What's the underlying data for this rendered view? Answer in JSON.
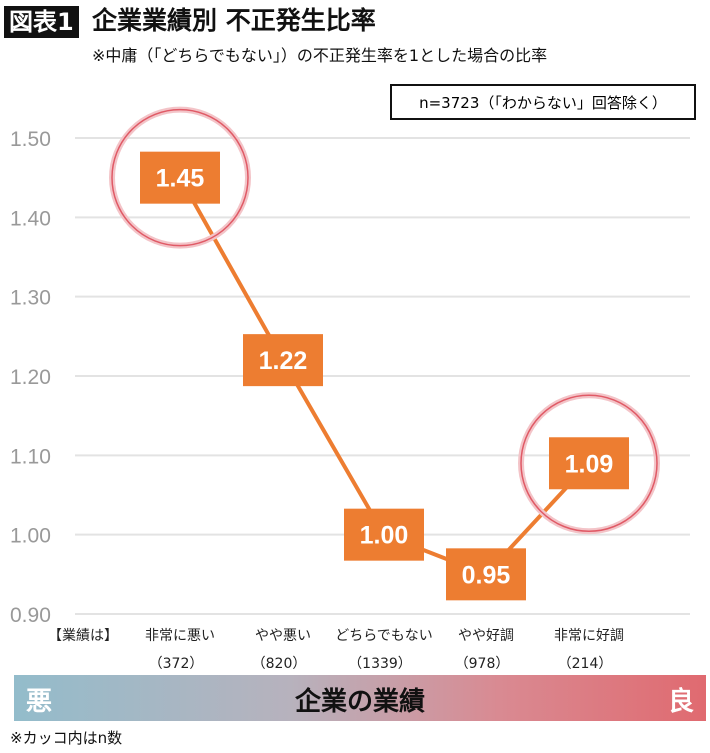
{
  "header": {
    "badge": "図表1",
    "title": "企業業績別 不正発生比率",
    "subtitle": "※中庸（「どちらでもない」）の不正発生率を1とした場合の比率",
    "n_note": "n=3723（「わからない」回答除く）"
  },
  "chart_data": {
    "type": "line",
    "title": "企業業績別 不正発生比率",
    "categories": [
      "非常に悪い",
      "やや悪い",
      "どちらでもない",
      "やや好調",
      "非常に好調"
    ],
    "category_counts": [
      "（372）",
      "（820）",
      "（1339）",
      "（978）",
      "（214）"
    ],
    "category_prefix": "【業績は】",
    "values": [
      1.45,
      1.22,
      1.0,
      0.95,
      1.09
    ],
    "data_labels": [
      "1.45",
      "1.22",
      "1.00",
      "0.95",
      "1.09"
    ],
    "highlighted": [
      "1.45",
      "1.09"
    ],
    "ylim": [
      0.9,
      1.5
    ],
    "yticks": [
      "0.90",
      "1.00",
      "1.10",
      "1.20",
      "1.30",
      "1.40",
      "1.50"
    ],
    "grid": true,
    "colors": {
      "line": "#ED7D31",
      "label_box": "#ED7D31",
      "highlight_circle": "#E05A66"
    }
  },
  "scale_band": {
    "left": "悪",
    "center": "企業の業績",
    "right": "良"
  },
  "footnote": "※カッコ内はn数"
}
